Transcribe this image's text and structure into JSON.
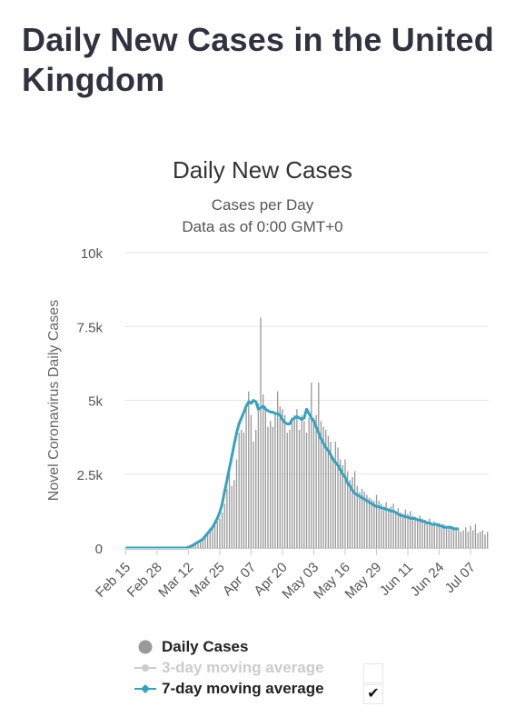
{
  "page": {
    "title": "Daily New Cases in the United Kingdom"
  },
  "chart_data": {
    "type": "bar",
    "title": "Daily New Cases",
    "subtitle_1": "Cases per Day",
    "subtitle_2": "Data as of 0:00 GMT+0",
    "ylabel": "Novel Coronavirus Daily Cases",
    "xlabel": "",
    "ylim": [
      0,
      10000
    ],
    "y_ticks": [
      "0",
      "2.5k",
      "5k",
      "7.5k",
      "10k"
    ],
    "y_tick_values": [
      0,
      2500,
      5000,
      7500,
      10000
    ],
    "x_ticks": [
      "Feb 15",
      "Feb 28",
      "Mar 12",
      "Mar 25",
      "Apr 07",
      "Apr 20",
      "May 03",
      "May 16",
      "May 29",
      "Jun 11",
      "Jun 24",
      "Jul 07"
    ],
    "x_tick_days": [
      0,
      13,
      26,
      39,
      52,
      65,
      78,
      91,
      104,
      117,
      130,
      143
    ],
    "grid": true,
    "series": [
      {
        "name": "Daily Cases",
        "color": "#999999",
        "values": [
          0,
          0,
          0,
          0,
          0,
          0,
          0,
          0,
          0,
          0,
          0,
          0,
          0,
          0,
          0,
          0,
          0,
          0,
          0,
          0,
          0,
          0,
          0,
          0,
          0,
          0,
          50,
          80,
          120,
          150,
          200,
          250,
          300,
          400,
          500,
          600,
          700,
          800,
          900,
          1000,
          1200,
          1500,
          2000,
          2600,
          2100,
          2300,
          3000,
          3900,
          4000,
          3900,
          4700,
          5300,
          4500,
          3600,
          4000,
          4900,
          7800,
          5200,
          4800,
          4100,
          4300,
          4100,
          4600,
          5300,
          4800,
          4700,
          4500,
          3900,
          4000,
          4300,
          4500,
          4700,
          4000,
          4500,
          4300,
          3900,
          4400,
          5600,
          4400,
          4500,
          5600,
          4300,
          4100,
          4000,
          3800,
          3600,
          3100,
          3600,
          3400,
          3000,
          2800,
          3000,
          2600,
          2300,
          2400,
          2600,
          2100,
          1900,
          2000,
          1900,
          1800,
          1700,
          1650,
          1600,
          1800,
          1600,
          1500,
          1400,
          1550,
          1300,
          1400,
          1500,
          1250,
          1350,
          1200,
          1100,
          1300,
          1150,
          1250,
          1100,
          1050,
          1000,
          1100,
          1000,
          950,
          900,
          1000,
          850,
          900,
          800,
          850,
          750,
          800,
          700,
          750,
          650,
          700,
          600,
          650,
          550,
          600,
          700,
          550,
          750,
          600,
          800,
          500,
          550,
          600,
          450,
          550
        ]
      },
      {
        "name": "3-day moving average",
        "color": "#cccccc",
        "visible": false
      },
      {
        "name": "7-day moving average",
        "color": "#35a3c0",
        "values": [
          0,
          0,
          0,
          0,
          0,
          0,
          0,
          0,
          0,
          0,
          0,
          0,
          0,
          0,
          0,
          0,
          0,
          0,
          0,
          0,
          0,
          0,
          0,
          0,
          0,
          0,
          20,
          60,
          100,
          150,
          200,
          250,
          300,
          400,
          500,
          600,
          700,
          850,
          1000,
          1200,
          1500,
          1900,
          2300,
          2700,
          3100,
          3500,
          3900,
          4200,
          4400,
          4600,
          4800,
          4950,
          4900,
          5000,
          4950,
          4700,
          4750,
          4800,
          4700,
          4650,
          4600,
          4600,
          4550,
          4550,
          4500,
          4350,
          4250,
          4200,
          4200,
          4350,
          4400,
          4450,
          4400,
          4350,
          4400,
          4700,
          4550,
          4400,
          4300,
          4100,
          3900,
          3700,
          3550,
          3400,
          3300,
          3150,
          3000,
          2900,
          2800,
          2650,
          2500,
          2400,
          2200,
          2100,
          1950,
          1850,
          1800,
          1750,
          1700,
          1650,
          1600,
          1550,
          1500,
          1450,
          1400,
          1400,
          1350,
          1350,
          1300,
          1300,
          1250,
          1250,
          1200,
          1150,
          1100,
          1100,
          1050,
          1050,
          1000,
          1000,
          1000,
          950,
          950,
          900,
          900,
          850,
          850,
          800,
          800,
          800,
          750,
          750,
          700,
          700,
          700,
          700,
          650,
          650,
          650
        ]
      }
    ],
    "legend": {
      "items": [
        "Daily Cases",
        "3-day moving average",
        "7-day moving average"
      ],
      "placement": "bottom",
      "checkbox_checked": "✔"
    }
  }
}
